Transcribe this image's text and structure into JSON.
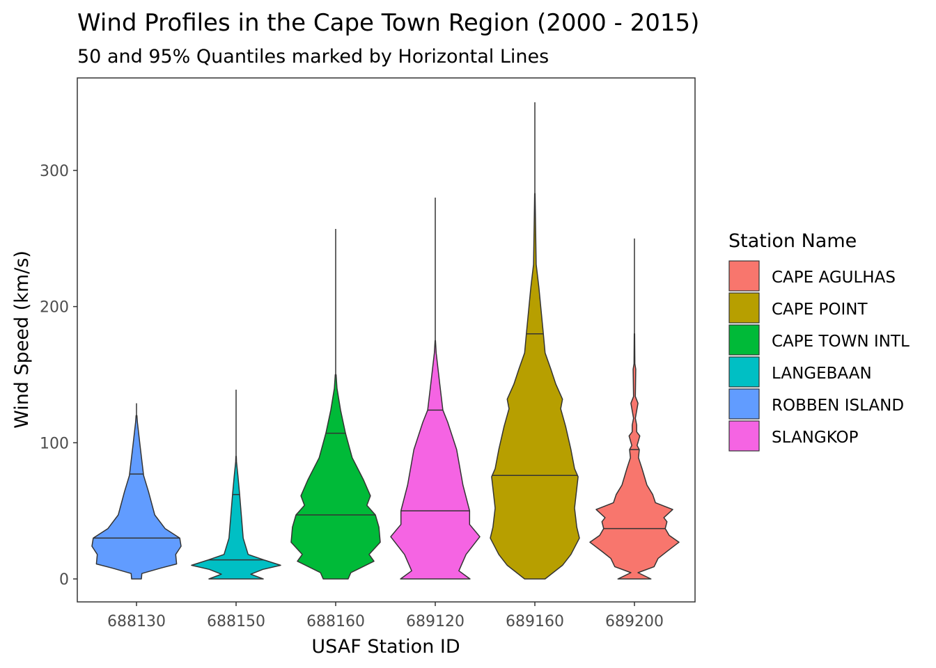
{
  "chart_data": {
    "type": "violin",
    "title": "Wind Profiles in the Cape Town Region (2000 - 2015)",
    "subtitle": "50 and 95% Quantiles marked by Horizontal Lines",
    "xlabel": "USAF Station ID",
    "ylabel": "Wind Speed (km/s)",
    "ylim": [
      -17,
      368
    ],
    "yticks": [
      0,
      100,
      200,
      300
    ],
    "ytick_labels": [
      "0",
      "100",
      "200",
      "300"
    ],
    "grid": false,
    "legend": {
      "title": "Station Name",
      "placement": "right",
      "entries": [
        {
          "label": "CAPE AGULHAS",
          "color": "#F8766D"
        },
        {
          "label": "CAPE POINT",
          "color": "#B79F00"
        },
        {
          "label": "CAPE TOWN INTL",
          "color": "#00BA38"
        },
        {
          "label": "LANGEBAAN",
          "color": "#00BFC4"
        },
        {
          "label": "ROBBEN ISLAND",
          "color": "#619CFF"
        },
        {
          "label": "SLANGKOP",
          "color": "#F564E3"
        }
      ]
    },
    "series": [
      {
        "category": "688130",
        "station": "ROBBEN ISLAND",
        "color": "#619CFF",
        "max": 129,
        "quantiles": [
          30,
          77
        ],
        "profile": [
          [
            0,
            0.11
          ],
          [
            4,
            0.12
          ],
          [
            8,
            0.55
          ],
          [
            11,
            0.9
          ],
          [
            18,
            0.88
          ],
          [
            24,
            1.0
          ],
          [
            30,
            0.97
          ],
          [
            37,
            0.64
          ],
          [
            47,
            0.41
          ],
          [
            64,
            0.27
          ],
          [
            76,
            0.16
          ],
          [
            98,
            0.08
          ],
          [
            115,
            0.02
          ],
          [
            120,
            0.01
          ]
        ]
      },
      {
        "category": "688150",
        "station": "LANGEBAAN",
        "color": "#00BFC4",
        "max": 139,
        "quantiles": [
          14,
          62
        ],
        "profile": [
          [
            0,
            0.61
          ],
          [
            3.5,
            0.33
          ],
          [
            7,
            0.6
          ],
          [
            10,
            1.0
          ],
          [
            14,
            0.62
          ],
          [
            18,
            0.27
          ],
          [
            30,
            0.16
          ],
          [
            50,
            0.11
          ],
          [
            62,
            0.08
          ],
          [
            76,
            0.04
          ],
          [
            86,
            0.01
          ],
          [
            90,
            0.005
          ]
        ]
      },
      {
        "category": "688160",
        "station": "CAPE TOWN INTL",
        "color": "#00BA38",
        "max": 257,
        "quantiles": [
          47,
          107
        ],
        "profile": [
          [
            0,
            0.28
          ],
          [
            4.6,
            0.34
          ],
          [
            13,
            0.86
          ],
          [
            18,
            0.75
          ],
          [
            27,
            1.0
          ],
          [
            38,
            0.97
          ],
          [
            47,
            0.89
          ],
          [
            54,
            0.7
          ],
          [
            61,
            0.78
          ],
          [
            73,
            0.62
          ],
          [
            89,
            0.37
          ],
          [
            107,
            0.22
          ],
          [
            124,
            0.11
          ],
          [
            140,
            0.03
          ],
          [
            150,
            0.01
          ]
        ]
      },
      {
        "category": "689120",
        "station": "SLANGKOP",
        "color": "#F564E3",
        "max": 280,
        "quantiles": [
          50,
          124
        ],
        "profile": [
          [
            0,
            0.78
          ],
          [
            6,
            0.53
          ],
          [
            18,
            0.69
          ],
          [
            31,
            1.0
          ],
          [
            40,
            0.77
          ],
          [
            50,
            0.77
          ],
          [
            69,
            0.62
          ],
          [
            95,
            0.48
          ],
          [
            115,
            0.28
          ],
          [
            124,
            0.17
          ],
          [
            146,
            0.09
          ],
          [
            166,
            0.02
          ],
          [
            175,
            0.005
          ]
        ]
      },
      {
        "category": "689160",
        "station": "CAPE POINT",
        "color": "#B79F00",
        "max": 350,
        "quantiles": [
          76,
          180
        ],
        "profile": [
          [
            0,
            0.23
          ],
          [
            10,
            0.62
          ],
          [
            18,
            0.81
          ],
          [
            30,
            1.0
          ],
          [
            38,
            0.94
          ],
          [
            52,
            0.89
          ],
          [
            75,
            0.97
          ],
          [
            81,
            0.89
          ],
          [
            95,
            0.81
          ],
          [
            112,
            0.69
          ],
          [
            125,
            0.58
          ],
          [
            132,
            0.62
          ],
          [
            143,
            0.47
          ],
          [
            154,
            0.36
          ],
          [
            166,
            0.23
          ],
          [
            180,
            0.19
          ],
          [
            197,
            0.14
          ],
          [
            214,
            0.09
          ],
          [
            231,
            0.03
          ],
          [
            260,
            0.015
          ],
          [
            283,
            0.005
          ]
        ]
      },
      {
        "category": "689200",
        "station": "CAPE AGULHAS",
        "color": "#F8766D",
        "max": 250,
        "quantiles": [
          37,
          95
        ],
        "profile": [
          [
            0,
            0.37
          ],
          [
            4.6,
            0.08
          ],
          [
            9,
            0.44
          ],
          [
            15,
            0.53
          ],
          [
            20,
            0.72
          ],
          [
            27,
            1.0
          ],
          [
            32,
            0.78
          ],
          [
            37,
            0.69
          ],
          [
            42,
            0.73
          ],
          [
            45,
            0.66
          ],
          [
            51,
            0.86
          ],
          [
            56,
            0.47
          ],
          [
            62,
            0.41
          ],
          [
            69,
            0.28
          ],
          [
            81,
            0.17
          ],
          [
            89,
            0.09
          ],
          [
            95,
            0.11
          ],
          [
            98,
            0.06
          ],
          [
            105,
            0.12
          ],
          [
            108,
            0.05
          ],
          [
            113,
            0.05
          ],
          [
            118,
            0.02
          ],
          [
            129,
            0.08
          ],
          [
            134,
            0.02
          ],
          [
            154,
            0.03
          ],
          [
            158,
            0.01
          ],
          [
            180,
            0.005
          ]
        ]
      }
    ]
  }
}
